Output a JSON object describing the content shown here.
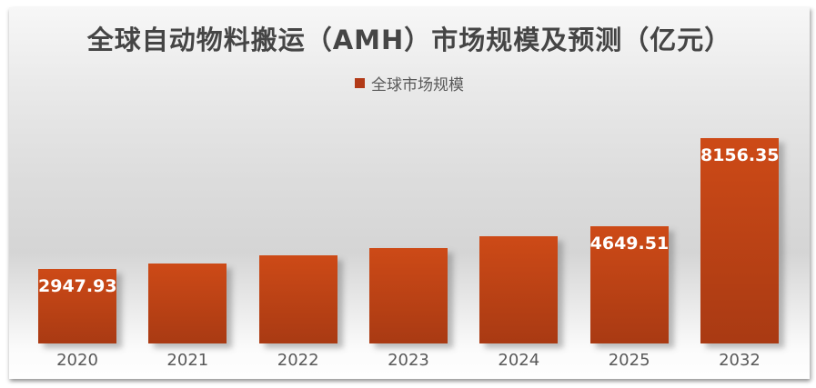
{
  "chart_data": {
    "type": "bar",
    "title": "全球自动物料搬运（AMH）市场规模及预测（亿元）",
    "legend": [
      "全球市场规模"
    ],
    "legend_position": "top-center",
    "categories": [
      "2020",
      "2021",
      "2022",
      "2023",
      "2024",
      "2025",
      "2032"
    ],
    "series": [
      {
        "name": "全球市场规模",
        "values": [
          2947.93,
          3190,
          3510,
          3800,
          4260,
          4649.51,
          8156.35
        ]
      }
    ],
    "value_labels_shown": [
      "2947.93",
      "",
      "",
      "",
      "",
      "4649.51",
      "8156.35"
    ],
    "xlabel": "",
    "ylabel": "",
    "ylim": [
      0,
      8600
    ],
    "grid": false,
    "y_axis_visible": false
  },
  "colors": {
    "bar_top": "#cd4a17",
    "bar_bottom": "#a93a13",
    "legend_swatch": "#b23a17",
    "title_text": "#454545",
    "axis_text": "#595959",
    "value_label_text": "#ffffff"
  }
}
